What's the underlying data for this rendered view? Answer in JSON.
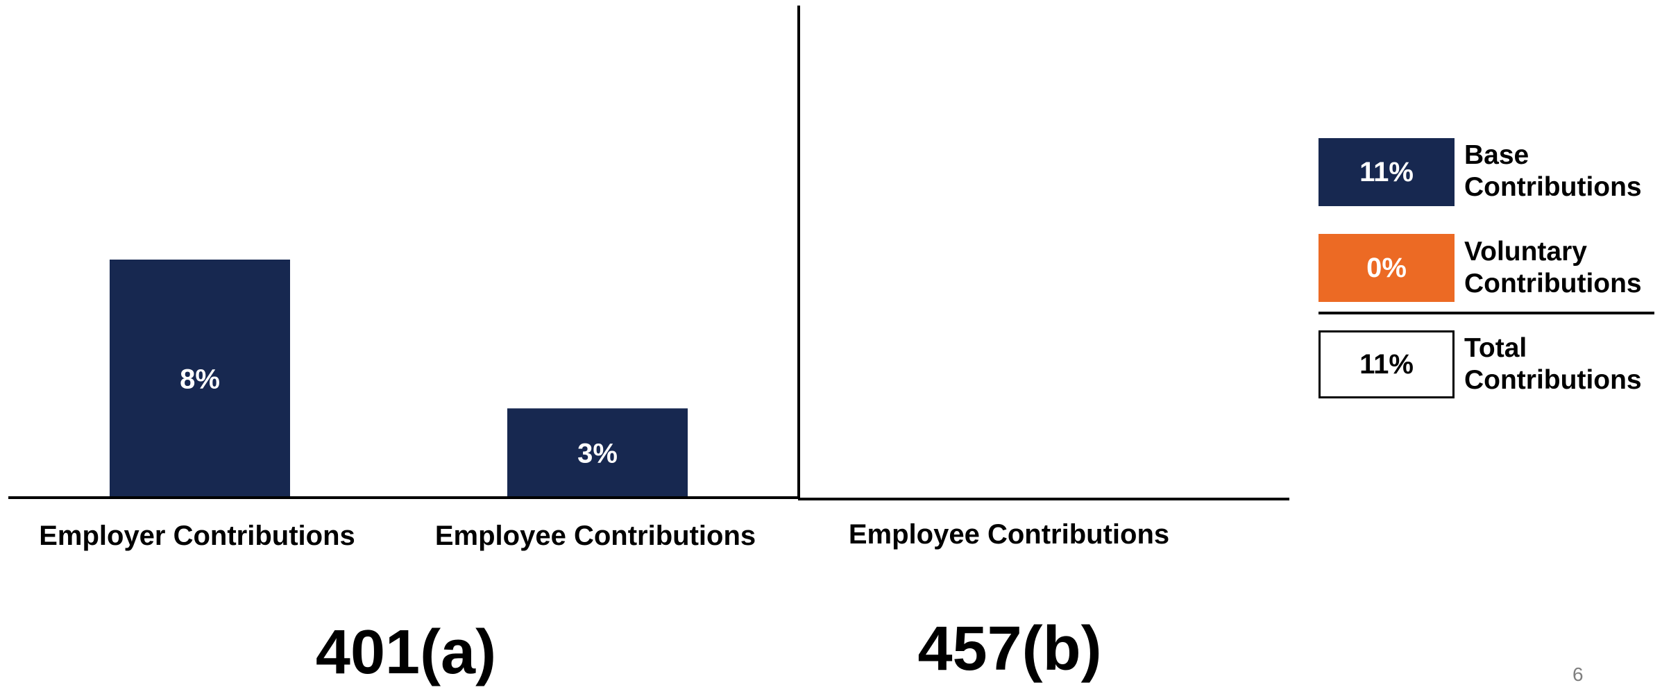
{
  "chart_data": {
    "type": "bar",
    "groups": [
      {
        "plan": "401(a)",
        "categories": [
          "Employer Contributions",
          "Employee Contributions"
        ],
        "values": [
          8,
          3
        ],
        "value_labels": [
          "8%",
          "3%"
        ]
      },
      {
        "plan": "457(b)",
        "categories": [
          "Employee Contributions"
        ],
        "values": [
          0
        ],
        "value_labels": []
      }
    ],
    "ylim": [
      0,
      12
    ],
    "grid": false,
    "legend_placement": "right",
    "bar_color": "#172850"
  },
  "legend": {
    "items": [
      {
        "value": "11%",
        "label": "Base Contributions",
        "fill": "#172850",
        "text_color": "#ffffff"
      },
      {
        "value": "0%",
        "label": "Voluntary Contributions",
        "fill": "#ec6a24",
        "text_color": "#ffffff"
      },
      {
        "value": "11%",
        "label": "Total Contributions",
        "fill": "#ffffff",
        "text_color": "#000000"
      }
    ]
  },
  "page_number": "6"
}
